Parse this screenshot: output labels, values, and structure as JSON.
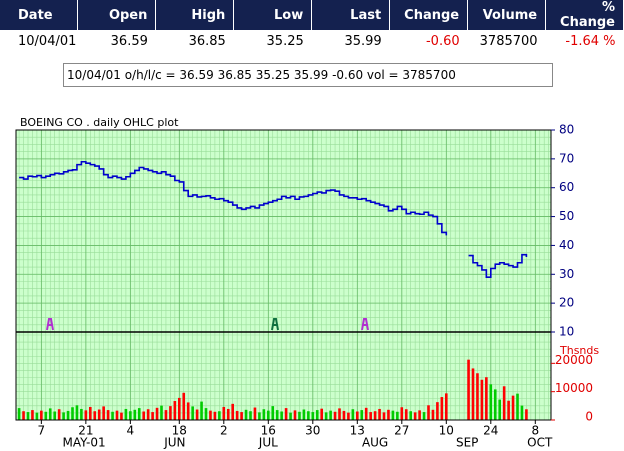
{
  "header": {
    "columns": [
      "Date",
      "Open",
      "High",
      "Low",
      "Last",
      "Change",
      "Volume",
      "% Change"
    ],
    "row": [
      "10/04/01",
      "36.59",
      "36.85",
      "35.25",
      "35.99",
      "-0.60",
      "3785700",
      "-1.64 %"
    ]
  },
  "info_box": "10/04/01 o/h/l/c = 36.59 36.85 35.25 35.99 -0.60 vol = 3785700",
  "chart_data": [
    {
      "type": "line",
      "title": "BOEING CO . daily OHLC plot",
      "color": "#0000cc",
      "ylim": [
        10,
        80
      ],
      "yticks": [
        10,
        20,
        30,
        40,
        50,
        60,
        70,
        80
      ],
      "grid": true,
      "values": [
        63.5,
        63,
        64,
        63.8,
        64.2,
        63.5,
        64,
        64.5,
        65,
        64.8,
        65.5,
        66,
        66.2,
        68,
        69,
        68.5,
        68,
        67.5,
        66.5,
        64.5,
        63.5,
        64,
        63.5,
        63,
        63.8,
        65,
        66,
        67,
        66.5,
        66,
        65.5,
        65,
        65.5,
        64.5,
        64,
        62.5,
        62,
        59,
        57,
        57.5,
        56.8,
        57,
        57.2,
        56.5,
        56,
        56.2,
        55.5,
        55,
        54,
        53,
        52.5,
        53,
        53.5,
        53,
        54,
        54.5,
        55,
        55.5,
        56,
        57,
        56.5,
        57,
        56,
        56.8,
        57,
        57.5,
        58,
        58.5,
        58.2,
        59,
        59.2,
        58.8,
        57.5,
        57,
        56.5,
        56.5,
        56,
        56.2,
        55.5,
        55,
        54.5,
        54,
        53.5,
        52,
        52.5,
        53.5,
        52.5,
        51,
        51.5,
        51,
        50.8,
        51.5,
        50.5,
        50,
        47.5,
        44.5,
        43.5,
        null,
        null,
        null,
        null,
        36.5,
        34,
        33,
        31.5,
        29,
        32,
        33.5,
        34,
        33.5,
        33,
        32.5,
        34,
        36.8,
        35.99
      ]
    },
    {
      "type": "bar",
      "y_label": "Thsnds",
      "up_color": "#00cc00",
      "down_color": "#ff0000",
      "ylim": [
        0,
        30000
      ],
      "yticks": [
        0,
        10000,
        20000
      ],
      "xticks": [
        {
          "value": 5,
          "label": "7"
        },
        {
          "value": 15,
          "label": "21"
        },
        {
          "value": 25,
          "label": "4"
        },
        {
          "value": 36,
          "label": "18"
        },
        {
          "value": 46,
          "label": "2"
        },
        {
          "value": 56,
          "label": "16"
        },
        {
          "value": 66,
          "label": "30"
        },
        {
          "value": 76,
          "label": "13"
        },
        {
          "value": 86,
          "label": "27"
        },
        {
          "value": 96,
          "label": "10"
        },
        {
          "value": 106,
          "label": "24"
        },
        {
          "value": 116,
          "label": "8"
        }
      ],
      "month_labels": [
        {
          "value": 14.6,
          "label": "MAY-01"
        },
        {
          "value": 35,
          "label": "JUN"
        },
        {
          "value": 56,
          "label": "JUL"
        },
        {
          "value": 80,
          "label": "AUG"
        },
        {
          "value": 100.7,
          "label": "SEP"
        },
        {
          "value": 117,
          "label": "OCT"
        }
      ],
      "values": [
        4200,
        3100,
        2800,
        3500,
        2600,
        3300,
        2900,
        4100,
        3000,
        3800,
        2700,
        3200,
        4500,
        5200,
        3900,
        3400,
        4600,
        3100,
        3700,
        4800,
        3500,
        2900,
        3300,
        2600,
        3900,
        3100,
        3600,
        4200,
        3000,
        3800,
        2800,
        4300,
        5100,
        3500,
        4900,
        6700,
        7800,
        9600,
        6200,
        4800,
        3700,
        6500,
        4200,
        3300,
        2900,
        3100,
        4600,
        3900,
        5700,
        3200,
        2800,
        3600,
        3100,
        4400,
        2700,
        3800,
        3300,
        4900,
        3500,
        3000,
        4200,
        2600,
        3400,
        2900,
        3700,
        3100,
        2800,
        3500,
        4000,
        2700,
        3300,
        2900,
        4100,
        3200,
        2600,
        3800,
        3000,
        3500,
        4300,
        2800,
        3100,
        3900,
        2700,
        3600,
        3300,
        2900,
        4500,
        3800,
        3100,
        2700,
        3400,
        2800,
        5200,
        3600,
        6300,
        8100,
        9400,
        null,
        null,
        null,
        null,
        21300,
        18200,
        16500,
        14200,
        15100,
        12600,
        10800,
        7200,
        11900,
        6800,
        8600,
        9300,
        5100,
        3785.7
      ]
    }
  ]
}
